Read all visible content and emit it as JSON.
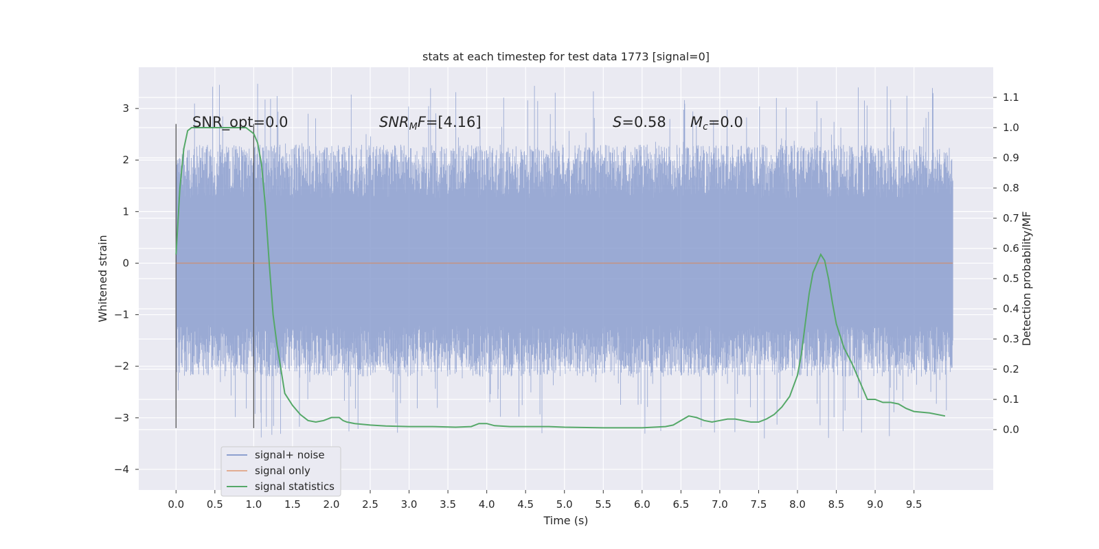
{
  "chart_data": {
    "type": "line",
    "title": "stats at each timestep for test data 1773 [signal=0]",
    "xlabel": "Time (s)",
    "ylabel_left": "Whitened strain",
    "ylabel_right": "Detection probability/MF",
    "xlim": [
      -0.48,
      10.52
    ],
    "ylim_left": [
      -4.4,
      3.8
    ],
    "ylim_right": [
      -0.2,
      1.2
    ],
    "x_ticks": [
      "0.0",
      "0.5",
      "1.0",
      "1.5",
      "2.0",
      "2.5",
      "3.0",
      "3.5",
      "4.0",
      "4.5",
      "5.0",
      "5.5",
      "6.0",
      "6.5",
      "7.0",
      "7.5",
      "8.0",
      "8.5",
      "9.0",
      "9.5"
    ],
    "y_ticks_left": [
      "3",
      "2",
      "1",
      "0",
      "−1",
      "−2",
      "−3",
      "−4"
    ],
    "y_ticks_right": [
      "1.1",
      "1.0",
      "0.9",
      "0.8",
      "0.7",
      "0.6",
      "0.5",
      "0.4",
      "0.3",
      "0.2",
      "0.1",
      "0.0"
    ],
    "grid": true,
    "legend_position": "lower-left",
    "annotations": {
      "snr_opt": "SNR_opt=0.0",
      "snr_mf": "=[4.16]",
      "snr_mf_sym": "SNR",
      "snr_mf_sub": "M",
      "snr_mf_f": "F",
      "s_val": "=0.58",
      "s_sym": "S",
      "mc_val": "=0.0",
      "mc_sym": "M",
      "mc_sub": "c"
    },
    "series": [
      {
        "name": "signal+ noise",
        "color": "#8c9fcf",
        "description_values": "whitened noise spanning roughly -3.5 to 3.5 over 0 to 10 s",
        "envelope": {
          "typical_high": 2.3,
          "typical_low": -2.2,
          "peak_high": 3.5,
          "peak_low": -3.4
        }
      },
      {
        "name": "signal only",
        "color": "#dd8452",
        "x": [
          0.0,
          10.0
        ],
        "y": [
          0.0,
          0.0
        ]
      },
      {
        "name": "signal statistics",
        "color": "#55a868",
        "axis": "right",
        "x": [
          0.0,
          0.05,
          0.1,
          0.15,
          0.2,
          0.3,
          0.5,
          0.7,
          0.9,
          1.0,
          1.05,
          1.1,
          1.15,
          1.2,
          1.25,
          1.3,
          1.35,
          1.4,
          1.5,
          1.6,
          1.7,
          1.8,
          1.9,
          2.0,
          2.1,
          2.15,
          2.2,
          2.3,
          2.5,
          2.7,
          3.0,
          3.3,
          3.6,
          3.8,
          3.9,
          4.0,
          4.1,
          4.3,
          4.5,
          4.8,
          5.0,
          5.5,
          6.0,
          6.3,
          6.4,
          6.5,
          6.6,
          6.7,
          6.8,
          6.9,
          7.0,
          7.1,
          7.2,
          7.3,
          7.4,
          7.5,
          7.6,
          7.7,
          7.8,
          7.9,
          8.0,
          8.05,
          8.1,
          8.15,
          8.2,
          8.25,
          8.3,
          8.35,
          8.4,
          8.45,
          8.5,
          8.6,
          8.7,
          8.8,
          8.9,
          9.0,
          9.1,
          9.2,
          9.3,
          9.4,
          9.5,
          9.7,
          9.9
        ],
        "y": [
          0.58,
          0.8,
          0.93,
          0.99,
          1.0,
          1.0,
          1.0,
          1.0,
          1.0,
          0.98,
          0.95,
          0.88,
          0.74,
          0.55,
          0.38,
          0.28,
          0.2,
          0.12,
          0.08,
          0.05,
          0.03,
          0.025,
          0.03,
          0.04,
          0.04,
          0.03,
          0.025,
          0.02,
          0.015,
          0.012,
          0.01,
          0.01,
          0.008,
          0.01,
          0.02,
          0.02,
          0.013,
          0.01,
          0.01,
          0.01,
          0.008,
          0.006,
          0.006,
          0.01,
          0.015,
          0.03,
          0.045,
          0.04,
          0.03,
          0.025,
          0.03,
          0.035,
          0.035,
          0.03,
          0.025,
          0.025,
          0.035,
          0.05,
          0.075,
          0.11,
          0.18,
          0.25,
          0.35,
          0.45,
          0.52,
          0.55,
          0.58,
          0.56,
          0.5,
          0.42,
          0.35,
          0.27,
          0.22,
          0.16,
          0.1,
          0.1,
          0.09,
          0.09,
          0.085,
          0.07,
          0.06,
          0.055,
          0.045
        ]
      }
    ],
    "vertical_markers": [
      0.0,
      1.0
    ]
  }
}
